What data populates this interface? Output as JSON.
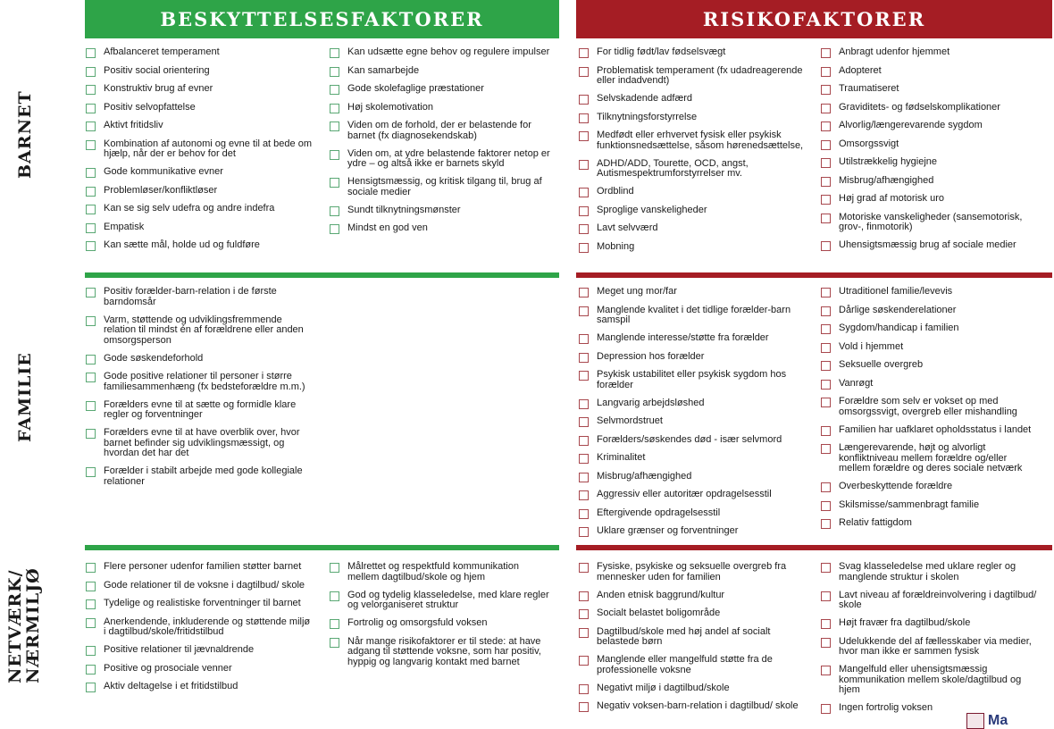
{
  "colors": {
    "green": "#2ea448",
    "red": "#a51d24"
  },
  "headers": {
    "protective": "BESKYTTELSESFAKTORER",
    "risk": "RISIKOFAKTORER"
  },
  "sections": [
    {
      "label": "BARNET",
      "protective": [
        [
          "Afbalanceret temperament",
          "Positiv social orientering",
          "Konstruktiv brug af evner",
          "Positiv selvopfattelse",
          "Aktivt fritidsliv",
          "Kombination af autonomi og evne til at bede om hjælp, når der er behov for det",
          "Gode kommunikative evner",
          "Problemløser/konfliktløser",
          "Kan se sig selv udefra og andre indefra",
          "Empatisk",
          "Kan sætte mål, holde ud og fuldføre"
        ],
        [
          "Kan udsætte egne behov og regulere impulser",
          "Kan samarbejde",
          "Gode skolefaglige præstationer",
          "Høj skolemotivation",
          "Viden om de forhold, der er belastende for barnet (fx diagnosekendskab)",
          "Viden om, at ydre belastende faktorer netop er ydre – og altså ikke er barnets skyld",
          "Hensigtsmæssig, og kritisk tilgang til, brug af sociale medier",
          "Sundt tilknytningsmønster",
          "Mindst en god ven"
        ]
      ],
      "risk": [
        [
          "For tidlig født/lav fødselsvægt",
          "Problematisk temperament (fx udadreagerende eller indadvendt)",
          "Selvskadende adfærd",
          "Tilknytningsforstyrrelse",
          "Medfødt eller erhvervet fysisk eller psykisk funktionsnedsættelse, såsom hørenedsættelse,",
          "ADHD/ADD, Tourette, OCD, angst, Autismespektrumforstyrrelser mv.",
          "Ordblind",
          "Sproglige vanskeligheder",
          "Lavt selvværd",
          "Mobning"
        ],
        [
          "Anbragt udenfor hjemmet",
          "Adopteret",
          "Traumatiseret",
          "Graviditets- og fødselskomplikationer",
          "Alvorlig/længerevarende sygdom",
          "Omsorgssvigt",
          "Utilstrækkelig hygiejne",
          "Misbrug/afhængighed",
          "Høj grad af motorisk uro",
          "Motoriske vanskeligheder (sansemotorisk, grov-, finmotorik)",
          "Uhensigtsmæssig brug af sociale medier"
        ]
      ]
    },
    {
      "label": "FAMILIE",
      "protective": [
        [
          "Positiv forælder-barn-relation i de første barndomsår",
          "Varm, støttende og udviklingsfremmende relation til mindst én af forældrene eller anden omsorgsperson",
          "Gode søskendeforhold",
          "Gode positive relationer til personer i større familiesammenhæng (fx bedsteforældre m.m.)",
          "Forælders evne til at sætte og formidle klare regler og forventninger",
          "Forælders evne til at have overblik over, hvor barnet befinder sig udviklingsmæssigt, og hvordan det har det",
          "Forælder i stabilt arbejde med gode kollegiale relationer"
        ],
        []
      ],
      "risk": [
        [
          "Meget ung mor/far",
          "Manglende kvalitet i det tidlige forælder-barn samspil",
          "Manglende interesse/støtte fra forælder",
          "Depression hos forælder",
          "Psykisk ustabilitet eller psykisk sygdom hos forælder",
          "Langvarig arbejdsløshed",
          "Selvmordstruet",
          "Forælders/søskendes død - især selvmord",
          "Kriminalitet",
          "Misbrug/afhængighed",
          "Aggressiv eller autoritær opdragelsesstil",
          "Eftergivende opdragelsesstil",
          "Uklare grænser og forventninger"
        ],
        [
          "Utraditionel familie/levevis",
          "Dårlige søskenderelationer",
          "Sygdom/handicap i familien",
          "Vold i hjemmet",
          "Seksuelle overgreb",
          "Vanrøgt",
          "Forældre som selv er vokset op med omsorgssvigt, overgreb eller mishandling",
          "Familien har uafklaret opholdsstatus i landet",
          "Længerevarende, højt og alvorligt konfliktniveau mellem forældre og/eller mellem forældre og deres sociale netværk",
          "Overbeskyttende forældre",
          "Skilsmisse/sammenbragt familie",
          "Relativ fattigdom"
        ]
      ]
    },
    {
      "label": "NETVÆRK/\nNÆRMILJØ",
      "protective": [
        [
          "Flere personer udenfor familien støtter barnet",
          "Gode relationer til de voksne i dagtilbud/ skole",
          "Tydelige og realistiske forventninger til barnet",
          "Anerkendende, inkluderende og støttende miljø i dagtilbud/skole/fritidstilbud",
          "Positive relationer til jævnaldrende",
          "Positive og prosociale venner",
          "Aktiv deltagelse i et fritidstilbud"
        ],
        [
          "Målrettet og respektfuld kommunikation mellem dagtilbud/skole og hjem",
          "God og tydelig klasseledelse, med klare regler og velorganiseret struktur",
          "Fortrolig og omsorgsfuld voksen",
          "Når mange risikofaktorer er til stede: at have adgang til støttende voksne, som har positiv, hyppig og langvarig kontakt med barnet"
        ]
      ],
      "risk": [
        [
          "Fysiske, psykiske og seksuelle overgreb fra mennesker uden for familien",
          "Anden etnisk baggrund/kultur",
          "Socialt belastet boligområde",
          "Dagtilbud/skole med høj andel af socialt belastede børn",
          "Manglende eller mangelfuld støtte fra de professionelle voksne",
          "Negativt miljø i dagtilbud/skole",
          "Negativ voksen-barn-relation i dagtilbud/ skole"
        ],
        [
          "Svag klasseledelse med uklare regler og manglende struktur i skolen",
          "Lavt niveau af forældreinvolvering i dagtilbud/ skole",
          "Højt fravær fra dagtilbud/skole",
          "Udelukkende del af fællesskaber via medier, hvor man ikke er sammen fysisk",
          "Mangelfuld eller uhensigtsmæssig kommunikation mellem skole/dagtilbud og hjem",
          "Ingen fortrolig voksen"
        ]
      ]
    }
  ],
  "logo": {
    "text": "Ma"
  }
}
